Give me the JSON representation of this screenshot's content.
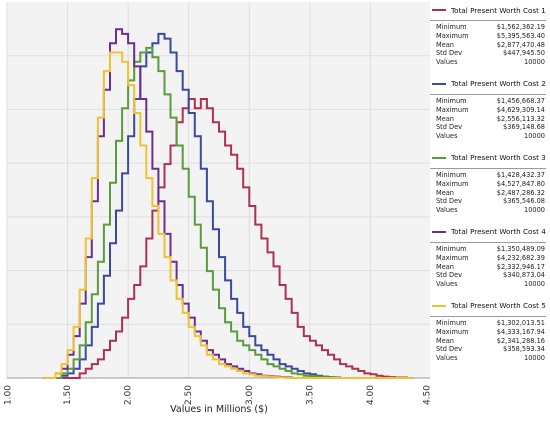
{
  "chart_data": {
    "type": "line",
    "title": "",
    "xlabel": "Values in Millions ($)",
    "ylabel": "",
    "xlim": [
      1.0,
      4.5
    ],
    "x_tick_labels": [
      "1.00",
      "1.50",
      "2.00",
      "2.50",
      "3.00",
      "3.50",
      "4.00",
      "4.50"
    ],
    "x_tick_values": [
      1.0,
      1.5,
      2.0,
      2.5,
      3.0,
      3.5,
      4.0,
      4.5
    ],
    "grid": true,
    "legend_position": "right",
    "bin_start": 1.3,
    "bin_width": 0.05,
    "series": [
      {
        "name": "Total Present Worth Cost 1",
        "color": "#b0314e",
        "values": [
          0,
          0,
          0,
          0,
          0,
          0,
          0.01,
          0.02,
          0.03,
          0.04,
          0.06,
          0.08,
          0.1,
          0.13,
          0.17,
          0.2,
          0.24,
          0.3,
          0.36,
          0.41,
          0.46,
          0.5,
          0.55,
          0.58,
          0.6,
          0.58,
          0.6,
          0.58,
          0.55,
          0.53,
          0.5,
          0.48,
          0.45,
          0.41,
          0.37,
          0.33,
          0.3,
          0.27,
          0.24,
          0.2,
          0.17,
          0.14,
          0.11,
          0.09,
          0.08,
          0.07,
          0.06,
          0.05,
          0.04,
          0.03,
          0.025,
          0.02,
          0.015,
          0.01,
          0.008,
          0.005,
          0.003,
          0.002,
          0.001,
          0.001,
          0
        ]
      },
      {
        "name": "Total Present Worth Cost 2",
        "color": "#3b4a9e",
        "values": [
          0,
          0,
          0,
          0.005,
          0.01,
          0.02,
          0.04,
          0.07,
          0.11,
          0.16,
          0.22,
          0.29,
          0.36,
          0.44,
          0.52,
          0.6,
          0.67,
          0.7,
          0.72,
          0.74,
          0.73,
          0.7,
          0.66,
          0.62,
          0.57,
          0.52,
          0.45,
          0.38,
          0.32,
          0.26,
          0.21,
          0.17,
          0.14,
          0.11,
          0.09,
          0.07,
          0.06,
          0.05,
          0.04,
          0.03,
          0.025,
          0.02,
          0.015,
          0.01,
          0.008,
          0.005,
          0.003,
          0.002,
          0.001,
          0,
          0,
          0,
          0,
          0,
          0,
          0,
          0,
          0,
          0,
          0,
          0
        ]
      },
      {
        "name": "Total Present Worth Cost 3",
        "color": "#5c9a3e",
        "values": [
          0,
          0,
          0,
          0.01,
          0.02,
          0.04,
          0.07,
          0.12,
          0.18,
          0.25,
          0.33,
          0.42,
          0.51,
          0.58,
          0.64,
          0.68,
          0.7,
          0.71,
          0.69,
          0.66,
          0.61,
          0.56,
          0.5,
          0.45,
          0.39,
          0.33,
          0.28,
          0.23,
          0.19,
          0.15,
          0.12,
          0.1,
          0.08,
          0.07,
          0.06,
          0.05,
          0.04,
          0.03,
          0.025,
          0.02,
          0.015,
          0.01,
          0.008,
          0.005,
          0.004,
          0.003,
          0.002,
          0.001,
          0,
          0,
          0,
          0,
          0,
          0,
          0,
          0,
          0,
          0,
          0,
          0,
          0
        ]
      },
      {
        "name": "Total Present Worth Cost 4",
        "color": "#6a2f8e",
        "values": [
          0,
          0,
          0.01,
          0.02,
          0.05,
          0.09,
          0.16,
          0.26,
          0.38,
          0.52,
          0.62,
          0.72,
          0.75,
          0.74,
          0.72,
          0.67,
          0.6,
          0.53,
          0.45,
          0.38,
          0.31,
          0.25,
          0.2,
          0.16,
          0.13,
          0.1,
          0.08,
          0.06,
          0.05,
          0.04,
          0.03,
          0.025,
          0.02,
          0.015,
          0.01,
          0.008,
          0.005,
          0.004,
          0.003,
          0.002,
          0.001,
          0,
          0,
          0,
          0,
          0,
          0,
          0,
          0,
          0,
          0,
          0,
          0,
          0,
          0,
          0,
          0,
          0,
          0,
          0,
          0
        ]
      },
      {
        "name": "Total Present Worth Cost 5",
        "color": "#f0c132",
        "values": [
          0,
          0,
          0.01,
          0.03,
          0.06,
          0.11,
          0.19,
          0.3,
          0.43,
          0.56,
          0.66,
          0.7,
          0.7,
          0.68,
          0.63,
          0.57,
          0.5,
          0.43,
          0.37,
          0.31,
          0.26,
          0.21,
          0.17,
          0.14,
          0.11,
          0.09,
          0.07,
          0.05,
          0.04,
          0.03,
          0.025,
          0.02,
          0.015,
          0.01,
          0.008,
          0.005,
          0.004,
          0.003,
          0.002,
          0.001,
          0,
          0,
          0,
          0,
          0,
          0,
          0,
          0,
          0,
          0,
          0,
          0,
          0,
          0,
          0,
          0,
          0,
          0,
          0,
          0,
          0
        ]
      }
    ]
  },
  "legend": [
    {
      "name": "Total Present Worth Cost 1",
      "color": "#b0314e",
      "stats": [
        {
          "label": "Minimum",
          "value": "$1,562,362.19"
        },
        {
          "label": "Maximum",
          "value": "$5,395,563.40"
        },
        {
          "label": "Mean",
          "value": "$2,877,470.48"
        },
        {
          "label": "Std Dev",
          "value": "$447,945.50"
        },
        {
          "label": "Values",
          "value": "10000"
        }
      ]
    },
    {
      "name": "Total Present Worth Cost 2",
      "color": "#3b4a9e",
      "stats": [
        {
          "label": "Minimum",
          "value": "$1,456,668.37"
        },
        {
          "label": "Maximum",
          "value": "$4,629,309.14"
        },
        {
          "label": "Mean",
          "value": "$2,556,113.32"
        },
        {
          "label": "Std Dev",
          "value": "$369,148.68"
        },
        {
          "label": "Values",
          "value": "10000"
        }
      ]
    },
    {
      "name": "Total Present Worth Cost 3",
      "color": "#5c9a3e",
      "stats": [
        {
          "label": "Minimum",
          "value": "$1,428,432.37"
        },
        {
          "label": "Maximum",
          "value": "$4,527,847.80"
        },
        {
          "label": "Mean",
          "value": "$2,487,286.32"
        },
        {
          "label": "Std Dev",
          "value": "$365,546.08"
        },
        {
          "label": "Values",
          "value": "10000"
        }
      ]
    },
    {
      "name": "Total Present Worth Cost 4",
      "color": "#6a2f8e",
      "stats": [
        {
          "label": "Minimum",
          "value": "$1,350,489.09"
        },
        {
          "label": "Maximum",
          "value": "$4,232,682.39"
        },
        {
          "label": "Mean",
          "value": "$2,332,946.17"
        },
        {
          "label": "Std Dev",
          "value": "$340,873.04"
        },
        {
          "label": "Values",
          "value": "10000"
        }
      ]
    },
    {
      "name": "Total Present Worth Cost 5",
      "color": "#f0c132",
      "stats": [
        {
          "label": "Minimum",
          "value": "$1,302,013.51"
        },
        {
          "label": "Maximum",
          "value": "$4,333,167.94"
        },
        {
          "label": "Mean",
          "value": "$2,341,288.16"
        },
        {
          "label": "Std Dev",
          "value": "$358,593.34"
        },
        {
          "label": "Values",
          "value": "10000"
        }
      ]
    }
  ]
}
